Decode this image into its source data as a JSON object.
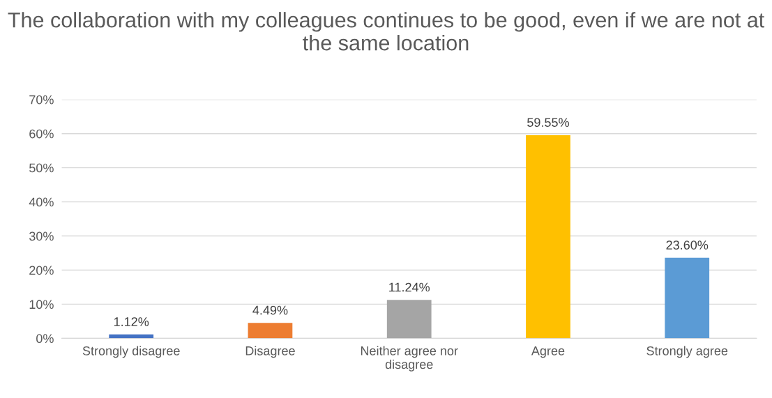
{
  "chart_data": {
    "type": "bar",
    "title": "The collaboration with my colleagues continues to be good, even if we are not at the same location",
    "categories": [
      "Strongly disagree",
      "Disagree",
      "Neither agree nor disagree",
      "Agree",
      "Strongly agree"
    ],
    "values": [
      1.12,
      4.49,
      11.24,
      59.55,
      23.6
    ],
    "value_labels": [
      "1.12%",
      "4.49%",
      "11.24%",
      "59.55%",
      "23.60%"
    ],
    "colors": [
      "#4472c4",
      "#ed7d31",
      "#a5a5a5",
      "#ffc000",
      "#5b9bd5"
    ],
    "ylim": [
      0,
      70
    ],
    "yticks": [
      {
        "value": 0,
        "label": "0%"
      },
      {
        "value": 10,
        "label": "10%"
      },
      {
        "value": 20,
        "label": "20%"
      },
      {
        "value": 30,
        "label": "30%"
      },
      {
        "value": 40,
        "label": "40%"
      },
      {
        "value": 50,
        "label": "50%"
      },
      {
        "value": 60,
        "label": "60%"
      },
      {
        "value": 70,
        "label": "70%"
      }
    ],
    "grid": "y",
    "legend": false
  }
}
